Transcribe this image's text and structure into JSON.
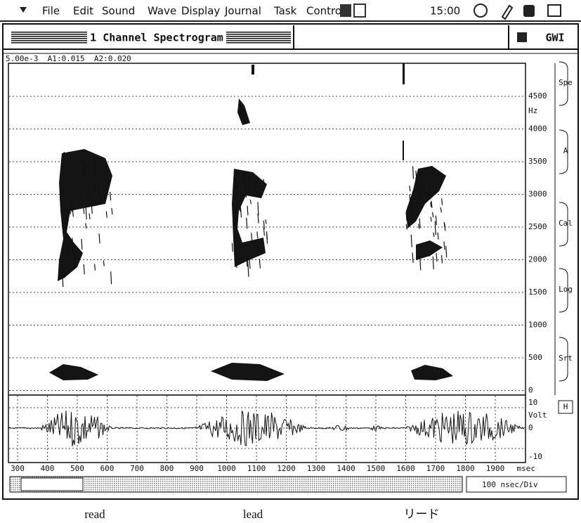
{
  "menu_bar": {
    "items": [
      "File",
      "Edit",
      "Sound",
      "Wave",
      "Display",
      "Journal",
      "Task",
      "Control"
    ],
    "clock": "15:00"
  },
  "window": {
    "title": "1 Channel Spectrogram",
    "badge": "GWI",
    "status": "5.00e-3  A1:0.015  A2:0.020"
  },
  "spectrogram": {
    "freq_labels": [
      "4500",
      "4000",
      "3500",
      "3000",
      "2500",
      "2000",
      "1500",
      "1000",
      "500",
      "0"
    ],
    "freq_unit": "Hz"
  },
  "side_buttons": [
    "Spe",
    "A",
    "Cal",
    "Log",
    "Srt"
  ],
  "waveform": {
    "labels": [
      "10",
      "Volt",
      "0",
      "-10"
    ],
    "button": "H"
  },
  "time_axis": {
    "labels": [
      "300",
      "400",
      "500",
      "600",
      "700",
      "800",
      "900",
      "1000",
      "1100",
      "1200",
      "1300",
      "1400",
      "1500",
      "1600",
      "1700",
      "1800",
      "1900"
    ],
    "unit": "msec"
  },
  "scroll": {
    "scale": "100 nsec/Div"
  },
  "captions": [
    "read",
    "lead",
    "リード"
  ]
}
